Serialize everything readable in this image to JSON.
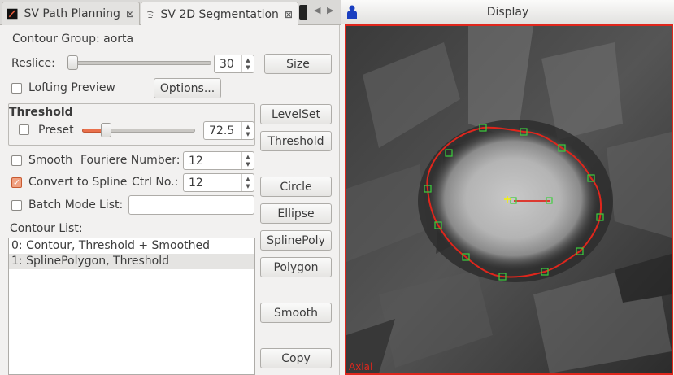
{
  "tabs": [
    {
      "label": "SV Path Planning",
      "active": false,
      "icon": "path-planning-icon"
    },
    {
      "label": "SV 2D Segmentation",
      "active": true,
      "icon": "segmentation-icon"
    }
  ],
  "segmentation": {
    "contour_group_label": "Contour Group: aorta",
    "reslice_label": "Reslice:",
    "reslice_value": "30",
    "size_button": "Size",
    "lofting_preview_label": "Lofting Preview",
    "lofting_preview_checked": false,
    "options_button": "Options...",
    "threshold_title": "Threshold",
    "preset_label": "Preset",
    "preset_checked": false,
    "threshold_value": "72.5",
    "smooth_label": "Smooth",
    "smooth_checked": false,
    "fourier_label": "Fouriere Number:",
    "fourier_value": "12",
    "convert_label": "Convert to Spline",
    "convert_checked": true,
    "ctrl_label": "Ctrl No.:",
    "ctrl_value": "12",
    "batch_label": "Batch Mode",
    "batch_checked": false,
    "list_label": "List:",
    "list_value": "",
    "contour_list_label": "Contour List:",
    "contours": [
      {
        "label": "0: Contour, Threshold + Smoothed",
        "selected": false
      },
      {
        "label": "1: SplinePolygon, Threshold",
        "selected": true
      }
    ]
  },
  "tools": {
    "levelset": "LevelSet",
    "threshold": "Threshold",
    "circle": "Circle",
    "ellipse": "Ellipse",
    "splinepoly": "SplinePoly",
    "polygon": "Polygon",
    "smooth": "Smooth",
    "copy": "Copy"
  },
  "display": {
    "title": "Display",
    "view_label": "Axial",
    "frame_color": "#e0261c",
    "contour_color": "#e0261c",
    "control_point_color": "#3ccf3c",
    "center_marker_color": "#f5f500"
  }
}
